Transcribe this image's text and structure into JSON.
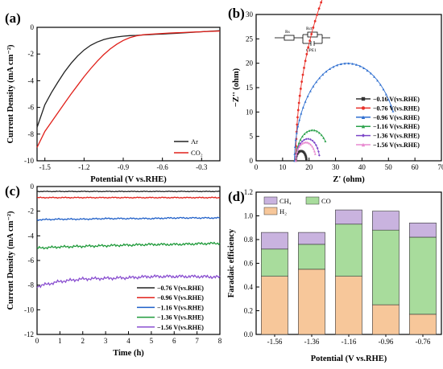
{
  "chart_data": [
    {
      "id": "a",
      "panel_label": "(a)",
      "type": "line",
      "xlabel": "Potential (V vs.RHE)",
      "ylabel": "Current Density (mA cm⁻²)",
      "xlim": [
        -1.56,
        -0.16
      ],
      "ylim": [
        -10,
        0
      ],
      "xticks": [
        -1.5,
        -1.2,
        -0.9,
        -0.6,
        -0.3
      ],
      "yticks": [
        0,
        -2,
        -4,
        -6,
        -8,
        -10
      ],
      "tick_labels_x": [
        "-1.5",
        "-1.2",
        "-0.9",
        "-0.6",
        "-0.3"
      ],
      "tick_labels_y": [
        "0",
        "-2",
        "-4",
        "-6",
        "-8",
        "-10"
      ],
      "legend_position": "bottom-right",
      "series": [
        {
          "name": "Ar",
          "color": "#222222",
          "x": [
            -1.56,
            -1.5,
            -1.45,
            -1.4,
            -1.35,
            -1.3,
            -1.25,
            -1.2,
            -1.15,
            -1.1,
            -1.05,
            -1.0,
            -0.95,
            -0.9,
            -0.85,
            -0.8,
            -0.75,
            -0.7,
            -0.65,
            -0.6,
            -0.55,
            -0.5,
            -0.45,
            -0.4,
            -0.35,
            -0.3,
            -0.25,
            -0.2,
            -0.16
          ],
          "y": [
            -7.5,
            -5.8,
            -4.9,
            -4.1,
            -3.35,
            -2.7,
            -2.15,
            -1.7,
            -1.35,
            -1.1,
            -0.92,
            -0.8,
            -0.72,
            -0.66,
            -0.62,
            -0.6,
            -0.57,
            -0.55,
            -0.52,
            -0.5,
            -0.47,
            -0.45,
            -0.42,
            -0.39,
            -0.36,
            -0.33,
            -0.3,
            -0.27,
            -0.25
          ]
        },
        {
          "name": "CO₂",
          "color": "#e0201a",
          "x": [
            -1.56,
            -1.5,
            -1.45,
            -1.4,
            -1.35,
            -1.3,
            -1.25,
            -1.2,
            -1.15,
            -1.1,
            -1.05,
            -1.0,
            -0.95,
            -0.9,
            -0.85,
            -0.8,
            -0.75,
            -0.7,
            -0.65,
            -0.6,
            -0.55,
            -0.5,
            -0.45,
            -0.4,
            -0.35,
            -0.3,
            -0.25,
            -0.2,
            -0.16
          ],
          "y": [
            -9.0,
            -7.8,
            -7.1,
            -6.4,
            -5.7,
            -5.0,
            -4.35,
            -3.7,
            -3.1,
            -2.55,
            -2.05,
            -1.62,
            -1.27,
            -0.98,
            -0.78,
            -0.64,
            -0.56,
            -0.52,
            -0.49,
            -0.46,
            -0.43,
            -0.41,
            -0.39,
            -0.37,
            -0.35,
            -0.33,
            -0.31,
            -0.29,
            -0.28
          ]
        }
      ]
    },
    {
      "id": "b",
      "panel_label": "(b)",
      "type": "scatter",
      "xlabel": "Z' (ohm)",
      "ylabel": "−Z'' (ohm)",
      "xlim": [
        0,
        70
      ],
      "ylim": [
        0,
        30
      ],
      "xticks": [
        0,
        10,
        20,
        30,
        40,
        50,
        60,
        70
      ],
      "yticks": [
        0,
        5,
        10,
        15,
        20,
        25,
        30
      ],
      "tick_labels_x": [
        "0",
        "10",
        "20",
        "30",
        "40",
        "50",
        "60",
        "70"
      ],
      "tick_labels_y": [
        "0",
        "5",
        "10",
        "15",
        "20",
        "25",
        "30"
      ],
      "legend_position": "bottom-right",
      "circuit_labels": [
        "Rs",
        "Rct",
        "CPE1"
      ],
      "series": [
        {
          "name": "−0.16 V(vs.RHE)",
          "color": "#333333",
          "marker": "square",
          "center": 17,
          "radius": 2,
          "arc_end": 0.98
        },
        {
          "name": "−0.76 V(vs.RHE)",
          "color": "#e8312a",
          "marker": "circle",
          "center": 75,
          "radius": 60,
          "arc_end": 0.38
        },
        {
          "name": "−0.96 V(vs.RHE)",
          "color": "#2f6fd0",
          "marker": "triangle",
          "center": 34.5,
          "radius": 20,
          "arc_end": 0.83
        },
        {
          "name": "−1.16 V(vs.RHE)",
          "color": "#2aa14a",
          "marker": "triangle",
          "center": 21.3,
          "radius": 6.3,
          "arc_end": 0.78
        },
        {
          "name": "−1.36 V(vs.RHE)",
          "color": "#7c46c8",
          "marker": "diamond",
          "center": 19.5,
          "radius": 4.5,
          "arc_end": 0.92
        },
        {
          "name": "−1.56 V(vs.RHE)",
          "color": "#e88ad0",
          "marker": "triangle",
          "center": 18.8,
          "radius": 3.8,
          "arc_end": 0.88
        }
      ]
    },
    {
      "id": "c",
      "panel_label": "(c)",
      "type": "line",
      "xlabel": "Time (h)",
      "ylabel": "Current Density (mA cm⁻²)",
      "xlim": [
        0,
        8
      ],
      "ylim": [
        -12,
        0
      ],
      "xticks": [
        0,
        1,
        2,
        3,
        4,
        5,
        6,
        7,
        8
      ],
      "yticks": [
        0,
        -2,
        -4,
        -6,
        -8,
        -10,
        -12
      ],
      "tick_labels_x": [
        "0",
        "1",
        "2",
        "3",
        "4",
        "5",
        "6",
        "7",
        "8"
      ],
      "tick_labels_y": [
        "0",
        "-2",
        "-4",
        "-6",
        "-8",
        "-10",
        "-12"
      ],
      "legend_position": "bottom-right",
      "series": [
        {
          "name": "−0.76 V(vs.RHE)",
          "color": "#222222",
          "x": [
            0,
            1,
            2,
            3,
            4,
            5,
            6,
            7,
            8
          ],
          "y": [
            -0.4,
            -0.4,
            -0.4,
            -0.4,
            -0.4,
            -0.4,
            -0.4,
            -0.4,
            -0.4
          ]
        },
        {
          "name": "−0.96 V(vs.RHE)",
          "color": "#e0201a",
          "x": [
            0,
            1,
            2,
            3,
            4,
            5,
            6,
            7,
            8
          ],
          "y": [
            -0.9,
            -0.9,
            -0.9,
            -0.9,
            -0.9,
            -0.9,
            -0.9,
            -0.9,
            -0.9
          ]
        },
        {
          "name": "−1.16 V(vs.RHE)",
          "color": "#1f5fc8",
          "x": [
            0,
            1,
            2,
            3,
            4,
            5,
            6,
            7,
            8
          ],
          "y": [
            -2.7,
            -2.65,
            -2.65,
            -2.6,
            -2.6,
            -2.6,
            -2.55,
            -2.55,
            -2.55
          ]
        },
        {
          "name": "−1.36 V(vs.RHE)",
          "color": "#1f9a3a",
          "x": [
            0,
            1,
            2,
            3,
            4,
            5,
            6,
            7,
            8
          ],
          "y": [
            -5.0,
            -4.9,
            -4.85,
            -4.8,
            -4.75,
            -4.7,
            -4.7,
            -4.65,
            -4.6
          ]
        },
        {
          "name": "−1.56 V(vs.RHE)",
          "color": "#8a4fd0",
          "x": [
            0,
            1,
            2,
            3,
            4,
            5,
            6,
            7,
            8
          ],
          "y": [
            -8.1,
            -7.7,
            -7.5,
            -7.45,
            -7.4,
            -7.3,
            -7.3,
            -7.3,
            -7.35
          ]
        }
      ]
    },
    {
      "id": "d",
      "panel_label": "(d)",
      "type": "bar",
      "stacked": true,
      "xlabel": "Potential (V vs.RHE)",
      "ylabel": "Faradaic efficiency",
      "categories": [
        "-1.56",
        "-1.36",
        "-1.16",
        "-0.96",
        "-0.76"
      ],
      "ylim": [
        0,
        1.2
      ],
      "yticks": [
        0,
        0.2,
        0.4,
        0.6,
        0.8,
        1.0,
        1.2
      ],
      "tick_labels_y": [
        "0.0",
        "0.2",
        "0.4",
        "0.6",
        "0.8",
        "1.0",
        "1.2"
      ],
      "legend_position": "top",
      "series": [
        {
          "name": "H₂",
          "color": "#f7c79a",
          "values": [
            0.49,
            0.55,
            0.49,
            0.25,
            0.17
          ]
        },
        {
          "name": "CO",
          "color": "#a8dc9c",
          "values": [
            0.23,
            0.21,
            0.44,
            0.63,
            0.65
          ]
        },
        {
          "name": "CH₄",
          "color": "#c9b3df",
          "values": [
            0.14,
            0.1,
            0.12,
            0.16,
            0.12
          ]
        }
      ]
    }
  ]
}
